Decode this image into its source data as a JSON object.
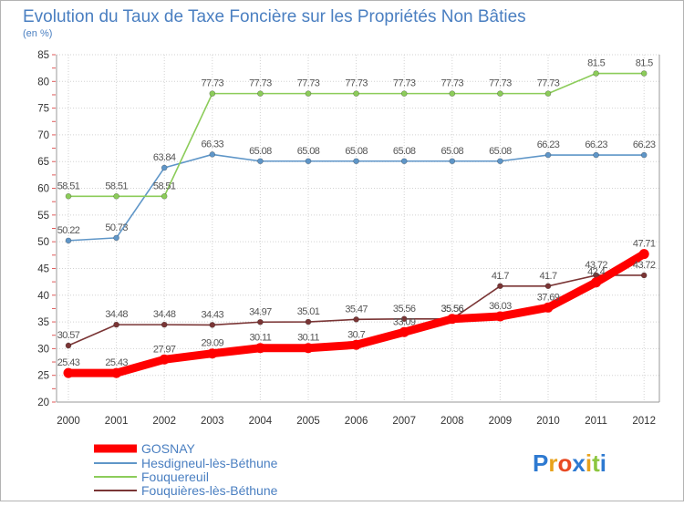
{
  "chart_data": {
    "type": "line",
    "title": "Evolution du Taux de Taxe Foncière sur les Propriétés Non Bâties",
    "subtitle": "(en %)",
    "xlabel": "",
    "ylabel": "",
    "ylim": [
      20,
      85
    ],
    "yticks": [
      20,
      25,
      30,
      35,
      40,
      45,
      50,
      55,
      60,
      65,
      70,
      75,
      80,
      85
    ],
    "x": [
      "2000",
      "2001",
      "2002",
      "2003",
      "2004",
      "2005",
      "2006",
      "2007",
      "2008",
      "2009",
      "2010",
      "2011",
      "2012"
    ],
    "grid": true,
    "legend_position": "bottom-left",
    "series": [
      {
        "name": "GOSNAY",
        "color": "#ff0000",
        "values": [
          25.43,
          25.43,
          27.97,
          29.09,
          30.11,
          30.11,
          30.7,
          33.09,
          35.56,
          36.03,
          37.69,
          42.4,
          47.71
        ],
        "labels": [
          "25.43",
          "25.43",
          "27.97",
          "29.09",
          "30.11",
          "30.11",
          "30.7",
          "33.09",
          "35.56",
          "36.03",
          "37.69",
          "42.4",
          "47.71"
        ]
      },
      {
        "name": "Hesdigneul-lès-Béthune",
        "color": "#5f96c8",
        "values": [
          50.22,
          50.73,
          63.84,
          66.33,
          65.08,
          65.08,
          65.08,
          65.08,
          65.08,
          65.08,
          66.23,
          66.23,
          66.23
        ],
        "labels": [
          "50.22",
          "50.73",
          "63.84",
          "66.33",
          "65.08",
          "65.08",
          "65.08",
          "65.08",
          "65.08",
          "65.08",
          "66.23",
          "66.23",
          "66.23"
        ]
      },
      {
        "name": "Fouquereuil",
        "color": "#8ccc5a",
        "values": [
          58.51,
          58.51,
          58.51,
          77.73,
          77.73,
          77.73,
          77.73,
          77.73,
          77.73,
          77.73,
          77.73,
          81.5,
          81.5
        ],
        "labels": [
          "58.51",
          "58.51",
          "58.51",
          "77.73",
          "77.73",
          "77.73",
          "77.73",
          "77.73",
          "77.73",
          "77.73",
          "77.73",
          "81.5",
          "81.5"
        ]
      },
      {
        "name": "Fouquières-lès-Béthune",
        "color": "#7a3535",
        "values": [
          30.57,
          34.48,
          34.48,
          34.43,
          34.97,
          35.01,
          35.47,
          35.56,
          35.56,
          41.7,
          41.7,
          43.72,
          43.72
        ],
        "labels": [
          "30.57",
          "34.48",
          "34.48",
          "34.43",
          "34.97",
          "35.01",
          "35.47",
          "35.56",
          "35.56",
          "41.7",
          "41.7",
          "43.72",
          "43.72"
        ]
      }
    ]
  },
  "brand": {
    "letters": [
      "P",
      "r",
      "o",
      "x",
      "i",
      "t",
      "i"
    ],
    "colors": [
      "#2e7ad1",
      "#e8a21c",
      "#e84a24",
      "#2e7ad1",
      "#e8a21c",
      "#8cc63f",
      "#2e7ad1"
    ]
  }
}
